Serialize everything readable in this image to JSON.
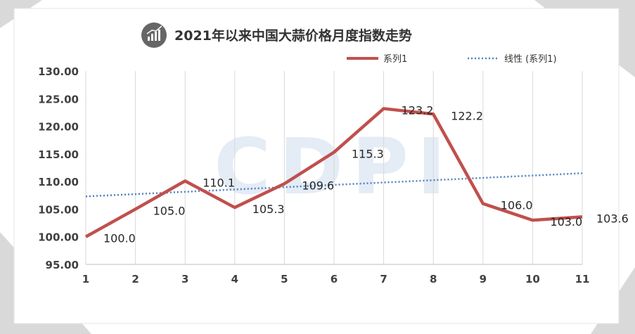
{
  "chart_data": {
    "type": "line",
    "title": "2021年以来中国大蒜价格月度指数走势",
    "categories": [
      "1",
      "2",
      "3",
      "4",
      "5",
      "6",
      "7",
      "8",
      "9",
      "10",
      "11"
    ],
    "series": [
      {
        "name": "系列1",
        "values": [
          100.0,
          105.0,
          110.1,
          105.3,
          109.6,
          115.3,
          123.2,
          122.2,
          106.0,
          103.0,
          103.6
        ],
        "color": "#c0504d",
        "style": "solid"
      }
    ],
    "trendline": {
      "name": "线性 (系列1)",
      "start": 107.3,
      "end": 111.5,
      "color": "#4f81bd",
      "style": "dotted"
    },
    "data_labels": [
      "100.0",
      "105.0",
      "110.1",
      "105.3",
      "109.6",
      "115.3",
      "123.2",
      "122.2",
      "106.0",
      "103.0",
      "103.6"
    ],
    "y_ticks": [
      "95.00",
      "100.00",
      "105.00",
      "110.00",
      "115.00",
      "120.00",
      "125.00",
      "130.00"
    ],
    "ylim": [
      95,
      130
    ],
    "grid": "vertical",
    "legend_position": "top-right",
    "watermark": "CDPI",
    "title_icon": "chart-icon"
  }
}
